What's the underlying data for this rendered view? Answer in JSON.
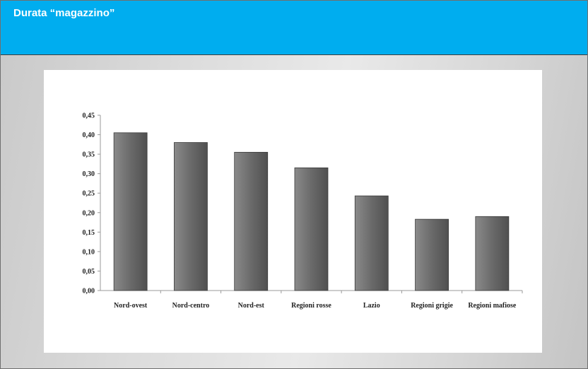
{
  "slide": {
    "title": "Durata “magazzino”"
  },
  "chart_data": {
    "type": "bar",
    "categories": [
      "Nord-ovest",
      "Nord-centro",
      "Nord-est",
      "Regioni rosse",
      "Lazio",
      "Regioni grigie",
      "Regioni mafiose"
    ],
    "values": [
      0.405,
      0.38,
      0.355,
      0.315,
      0.243,
      0.183,
      0.19
    ],
    "yticks": [
      "0,00",
      "0,05",
      "0,10",
      "0,15",
      "0,20",
      "0,25",
      "0,30",
      "0,35",
      "0,40",
      "0,45"
    ],
    "ylim": [
      0,
      0.45
    ],
    "bar_color": "#6e6e6e",
    "grid": false,
    "legend": "none"
  }
}
